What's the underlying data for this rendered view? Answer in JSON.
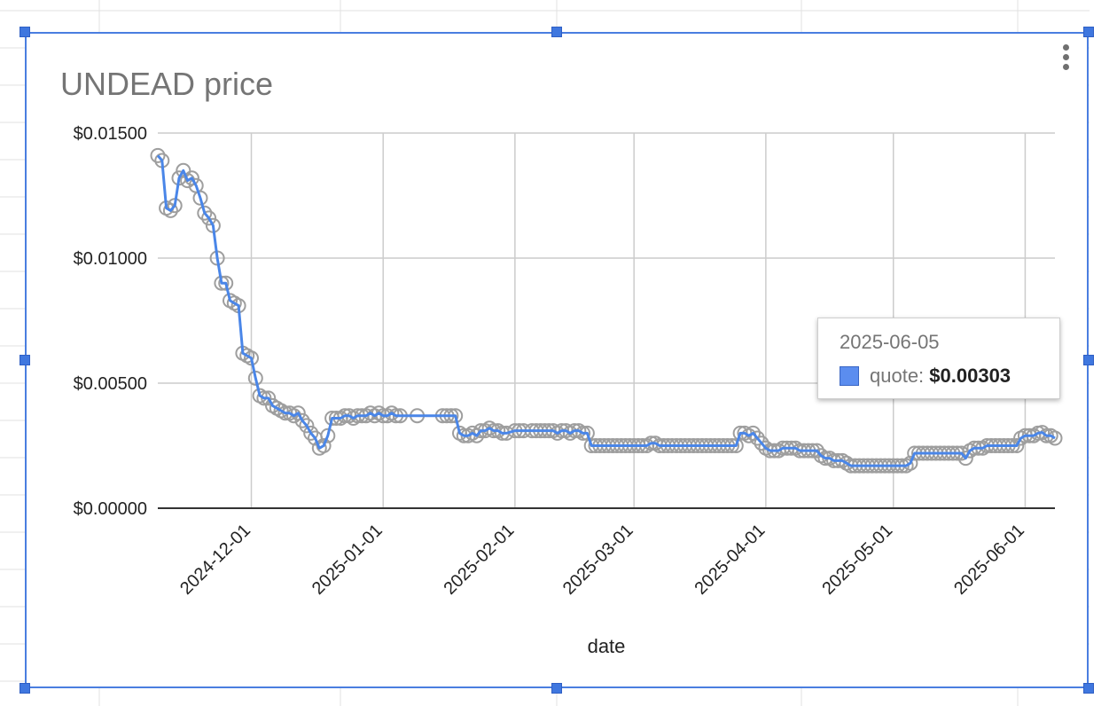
{
  "chart_data": {
    "type": "line",
    "title": "UNDEAD price",
    "xlabel": "date",
    "ylabel": "",
    "ylim": [
      0,
      0.015
    ],
    "xlim": [
      "2024-11-09",
      "2025-06-08"
    ],
    "y_ticks": [
      "$0.00000",
      "$0.00500",
      "$0.01000",
      "$0.01500"
    ],
    "x_ticks": [
      "2024-12-01",
      "2025-01-01",
      "2025-02-01",
      "2025-03-01",
      "2025-04-01",
      "2025-05-01",
      "2025-06-01"
    ],
    "grid": true,
    "point_markers": "hollow gray circles",
    "series": [
      {
        "name": "quote",
        "color": "#4a86e8",
        "marker_color": "#9e9e9e",
        "points": [
          [
            "2024-11-09",
            0.0141
          ],
          [
            "2024-11-10",
            0.0139
          ],
          [
            "2024-11-11",
            0.012
          ],
          [
            "2024-11-12",
            0.0119
          ],
          [
            "2024-11-13",
            0.0121
          ],
          [
            "2024-11-14",
            0.0132
          ],
          [
            "2024-11-15",
            0.0135
          ],
          [
            "2024-11-16",
            0.0131
          ],
          [
            "2024-11-17",
            0.0132
          ],
          [
            "2024-11-18",
            0.0129
          ],
          [
            "2024-11-19",
            0.0124
          ],
          [
            "2024-11-20",
            0.0118
          ],
          [
            "2024-11-21",
            0.0116
          ],
          [
            "2024-11-22",
            0.0113
          ],
          [
            "2024-11-23",
            0.01
          ],
          [
            "2024-11-24",
            0.009
          ],
          [
            "2024-11-25",
            0.009
          ],
          [
            "2024-11-26",
            0.0083
          ],
          [
            "2024-11-27",
            0.0082
          ],
          [
            "2024-11-28",
            0.0081
          ],
          [
            "2024-11-29",
            0.0062
          ],
          [
            "2024-11-30",
            0.0061
          ],
          [
            "2024-12-01",
            0.006
          ],
          [
            "2024-12-02",
            0.0052
          ],
          [
            "2024-12-03",
            0.0045
          ],
          [
            "2024-12-04",
            0.0044
          ],
          [
            "2024-12-05",
            0.0044
          ],
          [
            "2024-12-06",
            0.0041
          ],
          [
            "2024-12-07",
            0.004
          ],
          [
            "2024-12-08",
            0.0039
          ],
          [
            "2024-12-09",
            0.0038
          ],
          [
            "2024-12-10",
            0.0038
          ],
          [
            "2024-12-11",
            0.0037
          ],
          [
            "2024-12-12",
            0.0038
          ],
          [
            "2024-12-13",
            0.0035
          ],
          [
            "2024-12-14",
            0.0033
          ],
          [
            "2024-12-15",
            0.003
          ],
          [
            "2024-12-16",
            0.0028
          ],
          [
            "2024-12-17",
            0.0024
          ],
          [
            "2024-12-18",
            0.0025
          ],
          [
            "2024-12-19",
            0.0029
          ],
          [
            "2024-12-20",
            0.0036
          ],
          [
            "2024-12-21",
            0.0036
          ],
          [
            "2024-12-22",
            0.0036
          ],
          [
            "2024-12-23",
            0.0037
          ],
          [
            "2024-12-24",
            0.0037
          ],
          [
            "2024-12-25",
            0.0036
          ],
          [
            "2024-12-26",
            0.0037
          ],
          [
            "2024-12-27",
            0.0037
          ],
          [
            "2024-12-28",
            0.0037
          ],
          [
            "2024-12-29",
            0.0038
          ],
          [
            "2024-12-30",
            0.0037
          ],
          [
            "2024-12-31",
            0.0038
          ],
          [
            "2025-01-01",
            0.0037
          ],
          [
            "2025-01-02",
            0.0037
          ],
          [
            "2025-01-03",
            0.0038
          ],
          [
            "2025-01-04",
            0.0037
          ],
          [
            "2025-01-05",
            0.0037
          ],
          [
            "2025-01-09",
            0.0037
          ],
          [
            "2025-01-15",
            0.0037
          ],
          [
            "2025-01-16",
            0.0037
          ],
          [
            "2025-01-17",
            0.0037
          ],
          [
            "2025-01-18",
            0.0037
          ],
          [
            "2025-01-19",
            0.003
          ],
          [
            "2025-01-20",
            0.0029
          ],
          [
            "2025-01-21",
            0.0029
          ],
          [
            "2025-01-22",
            0.003
          ],
          [
            "2025-01-23",
            0.0029
          ],
          [
            "2025-01-24",
            0.0031
          ],
          [
            "2025-01-25",
            0.0031
          ],
          [
            "2025-01-26",
            0.0032
          ],
          [
            "2025-01-27",
            0.0031
          ],
          [
            "2025-01-28",
            0.0031
          ],
          [
            "2025-01-29",
            0.003
          ],
          [
            "2025-01-30",
            0.003
          ],
          [
            "2025-02-01",
            0.0031
          ],
          [
            "2025-02-02",
            0.0031
          ],
          [
            "2025-02-03",
            0.0031
          ],
          [
            "2025-02-05",
            0.0031
          ],
          [
            "2025-02-06",
            0.0031
          ],
          [
            "2025-02-07",
            0.0031
          ],
          [
            "2025-02-08",
            0.0031
          ],
          [
            "2025-02-09",
            0.0031
          ],
          [
            "2025-02-10",
            0.0031
          ],
          [
            "2025-02-11",
            0.003
          ],
          [
            "2025-02-12",
            0.0031
          ],
          [
            "2025-02-13",
            0.0031
          ],
          [
            "2025-02-14",
            0.003
          ],
          [
            "2025-02-15",
            0.0031
          ],
          [
            "2025-02-16",
            0.0031
          ],
          [
            "2025-02-17",
            0.003
          ],
          [
            "2025-02-18",
            0.003
          ],
          [
            "2025-02-19",
            0.0025
          ],
          [
            "2025-02-20",
            0.0025
          ],
          [
            "2025-02-21",
            0.0025
          ],
          [
            "2025-02-22",
            0.0025
          ],
          [
            "2025-02-23",
            0.0025
          ],
          [
            "2025-02-24",
            0.0025
          ],
          [
            "2025-02-25",
            0.0025
          ],
          [
            "2025-02-26",
            0.0025
          ],
          [
            "2025-02-27",
            0.0025
          ],
          [
            "2025-02-28",
            0.0025
          ],
          [
            "2025-03-01",
            0.0025
          ],
          [
            "2025-03-02",
            0.0025
          ],
          [
            "2025-03-03",
            0.0025
          ],
          [
            "2025-03-04",
            0.0025
          ],
          [
            "2025-03-05",
            0.0026
          ],
          [
            "2025-03-06",
            0.0026
          ],
          [
            "2025-03-07",
            0.0025
          ],
          [
            "2025-03-08",
            0.0025
          ],
          [
            "2025-03-09",
            0.0025
          ],
          [
            "2025-03-10",
            0.0025
          ],
          [
            "2025-03-11",
            0.0025
          ],
          [
            "2025-03-12",
            0.0025
          ],
          [
            "2025-03-13",
            0.0025
          ],
          [
            "2025-03-14",
            0.0025
          ],
          [
            "2025-03-15",
            0.0025
          ],
          [
            "2025-03-16",
            0.0025
          ],
          [
            "2025-03-17",
            0.0025
          ],
          [
            "2025-03-18",
            0.0025
          ],
          [
            "2025-03-19",
            0.0025
          ],
          [
            "2025-03-20",
            0.0025
          ],
          [
            "2025-03-21",
            0.0025
          ],
          [
            "2025-03-22",
            0.0025
          ],
          [
            "2025-03-23",
            0.0025
          ],
          [
            "2025-03-24",
            0.0025
          ],
          [
            "2025-03-25",
            0.0025
          ],
          [
            "2025-03-26",
            0.003
          ],
          [
            "2025-03-27",
            0.003
          ],
          [
            "2025-03-28",
            0.0029
          ],
          [
            "2025-03-29",
            0.003
          ],
          [
            "2025-03-30",
            0.0028
          ],
          [
            "2025-03-31",
            0.0026
          ],
          [
            "2025-04-01",
            0.0024
          ],
          [
            "2025-04-02",
            0.0023
          ],
          [
            "2025-04-03",
            0.0023
          ],
          [
            "2025-04-04",
            0.0023
          ],
          [
            "2025-04-05",
            0.0024
          ],
          [
            "2025-04-06",
            0.0024
          ],
          [
            "2025-04-07",
            0.0024
          ],
          [
            "2025-04-08",
            0.0024
          ],
          [
            "2025-04-09",
            0.0023
          ],
          [
            "2025-04-10",
            0.0023
          ],
          [
            "2025-04-11",
            0.0023
          ],
          [
            "2025-04-12",
            0.0023
          ],
          [
            "2025-04-13",
            0.0023
          ],
          [
            "2025-04-14",
            0.0021
          ],
          [
            "2025-04-15",
            0.002
          ],
          [
            "2025-04-16",
            0.002
          ],
          [
            "2025-04-17",
            0.0019
          ],
          [
            "2025-04-18",
            0.0019
          ],
          [
            "2025-04-19",
            0.0019
          ],
          [
            "2025-04-20",
            0.0018
          ],
          [
            "2025-04-21",
            0.0017
          ],
          [
            "2025-04-22",
            0.0017
          ],
          [
            "2025-04-23",
            0.0017
          ],
          [
            "2025-04-24",
            0.0017
          ],
          [
            "2025-04-25",
            0.0017
          ],
          [
            "2025-04-26",
            0.0017
          ],
          [
            "2025-04-27",
            0.0017
          ],
          [
            "2025-04-28",
            0.0017
          ],
          [
            "2025-04-29",
            0.0017
          ],
          [
            "2025-04-30",
            0.0017
          ],
          [
            "2025-05-01",
            0.0017
          ],
          [
            "2025-05-02",
            0.0017
          ],
          [
            "2025-05-03",
            0.0017
          ],
          [
            "2025-05-04",
            0.0017
          ],
          [
            "2025-05-05",
            0.0018
          ],
          [
            "2025-05-06",
            0.0022
          ],
          [
            "2025-05-07",
            0.0022
          ],
          [
            "2025-05-08",
            0.0022
          ],
          [
            "2025-05-09",
            0.0022
          ],
          [
            "2025-05-10",
            0.0022
          ],
          [
            "2025-05-11",
            0.0022
          ],
          [
            "2025-05-12",
            0.0022
          ],
          [
            "2025-05-13",
            0.0022
          ],
          [
            "2025-05-14",
            0.0022
          ],
          [
            "2025-05-15",
            0.0022
          ],
          [
            "2025-05-16",
            0.0022
          ],
          [
            "2025-05-17",
            0.0022
          ],
          [
            "2025-05-18",
            0.002
          ],
          [
            "2025-05-19",
            0.0023
          ],
          [
            "2025-05-20",
            0.0024
          ],
          [
            "2025-05-21",
            0.0024
          ],
          [
            "2025-05-22",
            0.0024
          ],
          [
            "2025-05-23",
            0.0025
          ],
          [
            "2025-05-24",
            0.0025
          ],
          [
            "2025-05-25",
            0.0025
          ],
          [
            "2025-05-26",
            0.0025
          ],
          [
            "2025-05-27",
            0.0025
          ],
          [
            "2025-05-28",
            0.0025
          ],
          [
            "2025-05-29",
            0.0025
          ],
          [
            "2025-05-30",
            0.0025
          ],
          [
            "2025-05-31",
            0.0028
          ],
          [
            "2025-06-01",
            0.0029
          ],
          [
            "2025-06-02",
            0.0029
          ],
          [
            "2025-06-03",
            0.0029
          ],
          [
            "2025-06-04",
            0.003
          ],
          [
            "2025-06-05",
            0.00303
          ],
          [
            "2025-06-06",
            0.0029
          ],
          [
            "2025-06-07",
            0.0029
          ],
          [
            "2025-06-08",
            0.0028
          ]
        ]
      }
    ]
  },
  "tooltip": {
    "date": "2025-06-05",
    "series_label": "quote: ",
    "value": "$0.00303",
    "swatch_color": "#5b8def"
  }
}
